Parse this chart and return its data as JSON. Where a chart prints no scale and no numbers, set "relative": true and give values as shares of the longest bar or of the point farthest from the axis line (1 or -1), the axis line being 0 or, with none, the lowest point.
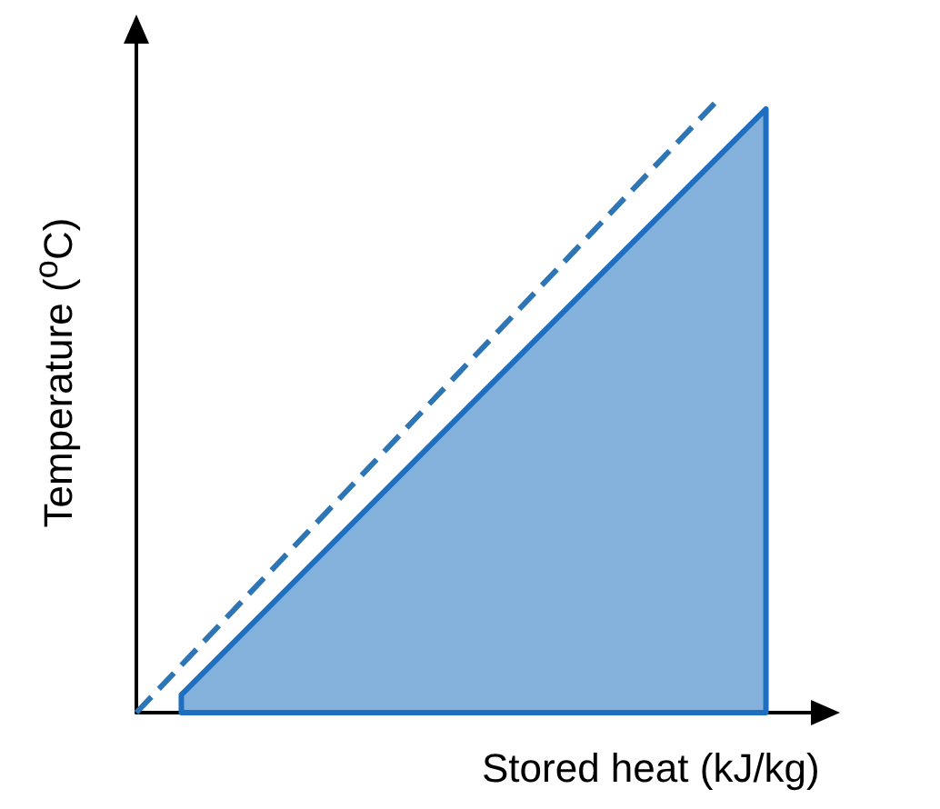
{
  "chart_data": {
    "type": "area",
    "relative": true,
    "xlabel": "Stored heat (kJ/kg)",
    "ylabel": "Temperature ($^{o}$C)",
    "grid": false,
    "marker": "none",
    "categories": [
      null,
      null,
      null,
      null,
      null,
      null,
      null,
      null,
      null,
      null,
      null,
      null,
      null,
      null,
      null,
      null
    ],
    "series": [
      {
        "color": "#1f6fc0",
        "values": [
          null,
          0.029,
          null,
          null,
          null,
          null,
          null,
          null,
          null,
          null,
          null,
          null,
          null,
          null,
          0.98,
          null
        ]
      },
      {
        "type": "line",
        "line_style": "dashed",
        "color": "#2e75b6",
        "values": [
          0,
          null,
          null,
          null,
          null,
          null,
          null,
          null,
          null,
          null,
          null,
          null,
          null,
          1,
          null,
          null
        ]
      }
    ]
  }
}
